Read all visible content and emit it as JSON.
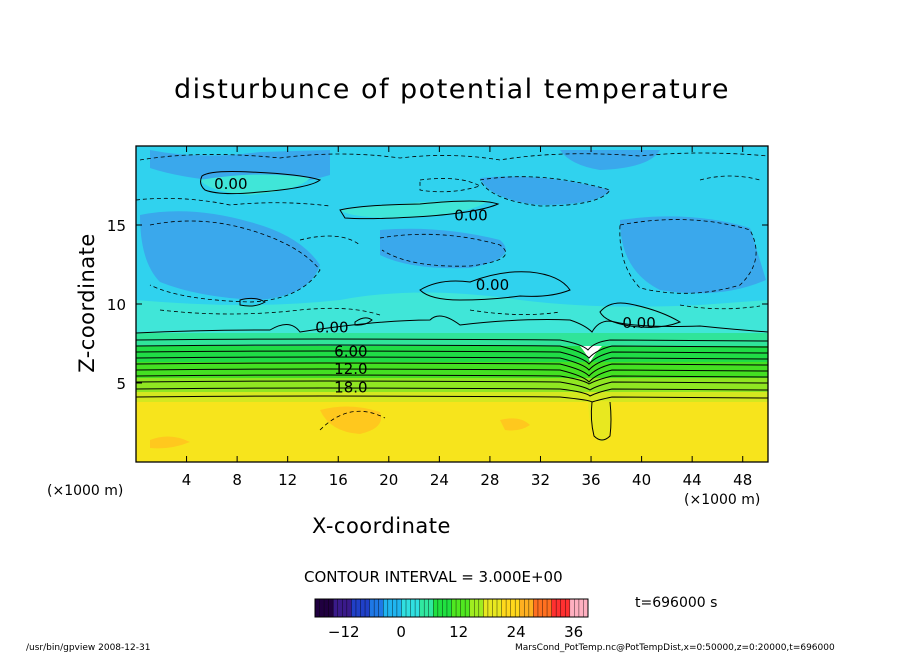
{
  "chart_data": {
    "type": "heatmap",
    "title": "disturbunce of potential temperature",
    "xlabel": "X-coordinate",
    "ylabel": "Z-coordinate",
    "x_unit_left": "(×1000 m)",
    "x_unit_right": "(×1000 m)",
    "xlim": [
      0,
      50
    ],
    "ylim": [
      0,
      20
    ],
    "x_ticks": [
      4,
      8,
      12,
      16,
      20,
      24,
      28,
      32,
      36,
      40,
      44,
      48
    ],
    "y_ticks": [
      5,
      10,
      15
    ],
    "contour_interval": "CONTOUR INTERVAL = 3.000E+00",
    "time_label": "t=696000 s",
    "contour_labels": [
      {
        "text": "0.00",
        "x": 7.5,
        "z": 17.6
      },
      {
        "text": "0.00",
        "x": 26.5,
        "z": 15.6
      },
      {
        "text": "0.00",
        "x": 28.2,
        "z": 11.2
      },
      {
        "text": "0.00",
        "x": 39.8,
        "z": 8.8
      },
      {
        "text": "0.00",
        "x": 15.5,
        "z": 8.5
      },
      {
        "text": "6.00",
        "x": 17.0,
        "z": 7.0
      },
      {
        "text": "12.0",
        "x": 17.0,
        "z": 5.9
      },
      {
        "text": "18.0",
        "x": 17.0,
        "z": 4.7
      }
    ],
    "colorbar": {
      "min": -18,
      "max": 39,
      "ticks": [
        -12,
        0,
        12,
        24,
        36
      ],
      "colors": [
        "#200040",
        "#3a1a8a",
        "#2040c8",
        "#1e78e6",
        "#20b4f0",
        "#30e0e0",
        "#30e8a0",
        "#20e040",
        "#50e820",
        "#a0ec20",
        "#e8e820",
        "#ffd81c",
        "#ffb020",
        "#ff7020",
        "#ff3030",
        "#ffb0c0"
      ]
    }
  },
  "footer": {
    "left": "/usr/bin/gpview  2008-12-31",
    "right": "MarsCond_PotTemp.nc@PotTempDist,x=0:50000,z=0:20000,t=696000"
  }
}
